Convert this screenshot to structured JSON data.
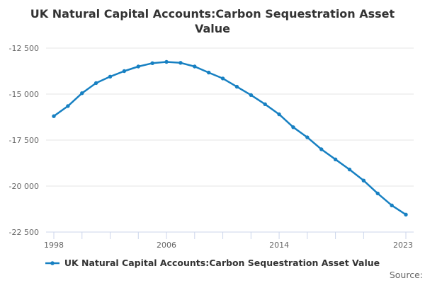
{
  "chart_data": {
    "type": "line",
    "title": "UK Natural Capital Accounts:Carbon Sequestration Asset Value",
    "x": [
      1998,
      1999,
      2000,
      2001,
      2002,
      2003,
      2004,
      2005,
      2006,
      2007,
      2008,
      2009,
      2010,
      2011,
      2012,
      2013,
      2014,
      2015,
      2016,
      2017,
      2018,
      2019,
      2020,
      2021,
      2022,
      2023
    ],
    "series": [
      {
        "name": "UK Natural Capital Accounts:Carbon Sequestration Asset Value",
        "color": "#1780c2",
        "values": [
          -16200,
          -15650,
          -14950,
          -14400,
          -14050,
          -13750,
          -13500,
          -13320,
          -13250,
          -13300,
          -13500,
          -13830,
          -14150,
          -14600,
          -15050,
          -15550,
          -16100,
          -16800,
          -17350,
          -18000,
          -18550,
          -19100,
          -19700,
          -20400,
          -21050,
          -21550
        ]
      }
    ],
    "xlim": [
      1998,
      2023
    ],
    "ylim": [
      -22500,
      -12500
    ],
    "yticks": [
      -12500,
      -15000,
      -17500,
      -20000,
      -22500
    ],
    "ytick_labels": [
      "-12 500",
      "-15 000",
      "-17 500",
      "-20 000",
      "-22 500"
    ],
    "xtick_years": [
      1998,
      2000,
      2002,
      2004,
      2006,
      2008,
      2010,
      2012,
      2014,
      2016,
      2018,
      2020,
      2023
    ],
    "xtick_labeled_years": [
      1998,
      2006,
      2014,
      2023
    ],
    "grid": "horizontal",
    "legend_position": "bottom",
    "source_label": "Source:",
    "colors": {
      "grid": "#e6e6e6",
      "axis": "#ccd6eb",
      "tick_label": "#666666",
      "title_text": "#333333",
      "legend_text": "#333333",
      "source_text": "#666666"
    }
  }
}
